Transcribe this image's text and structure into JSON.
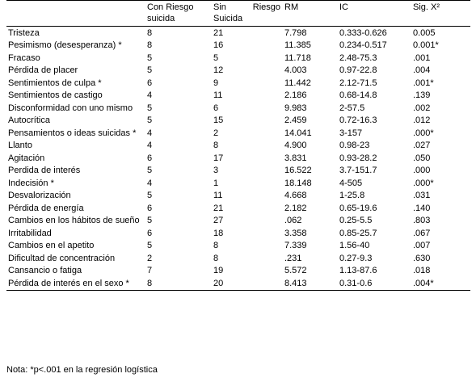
{
  "table": {
    "header": [
      "",
      "Con Riesgo suicida",
      "Sin Riesgo Suicida",
      "RM",
      "IC",
      "Sig. X²"
    ],
    "rows": [
      [
        "Tristeza",
        "8",
        "21",
        "7.798",
        "0.333-0.626",
        "0.005"
      ],
      [
        "Pesimismo (desesperanza) *",
        "8",
        "16",
        "11.385",
        "0.234-0.517",
        "0.001*"
      ],
      [
        "Fracaso",
        "5",
        "5",
        "11.718",
        "2.48-75.3",
        ".001"
      ],
      [
        "Pérdida de placer",
        "5",
        "12",
        "4.003",
        "0.97-22.8",
        ".004"
      ],
      [
        "Sentimientos de culpa *",
        "6",
        "9",
        "11.442",
        "2.12-71.5",
        ".001*"
      ],
      [
        "Sentimientos de castigo",
        "4",
        "11",
        "2.186",
        "0.68-14.8",
        ".139"
      ],
      [
        "Disconformidad con uno mismo",
        "5",
        "6",
        "9.983",
        "2-57.5",
        ".002"
      ],
      [
        "Autocrítica",
        "5",
        "15",
        "2.459",
        "0.72-16.3",
        ".012"
      ],
      [
        "Pensamientos o ideas suicidas *",
        "4",
        "2",
        "14.041",
        "3-157",
        ".000*"
      ],
      [
        "Llanto",
        "4",
        "8",
        "4.900",
        "0.98-23",
        ".027"
      ],
      [
        "Agitación",
        "6",
        "17",
        "3.831",
        "0.93-28.2",
        ".050"
      ],
      [
        "Perdida de interés",
        "5",
        "3",
        "16.522",
        "3.7-151.7",
        ".000"
      ],
      [
        "Indecisión *",
        "4",
        "1",
        "18.148",
        "4-505",
        ".000*"
      ],
      [
        "Desvalorización",
        "5",
        "11",
        "4.668",
        "1-25.8",
        ".031"
      ],
      [
        "Pérdida de energía",
        "6",
        "21",
        "2.182",
        "0.65-19.6",
        ".140"
      ],
      [
        "Cambios en los hábitos de sueño",
        "5",
        "27",
        ".062",
        "0.25-5.5",
        ".803"
      ],
      [
        "Irritabilidad",
        "6",
        "18",
        "3.358",
        "0.85-25.7",
        ".067"
      ],
      [
        "Cambios en el apetito",
        "5",
        "8",
        "7.339",
        "1.56-40",
        ".007"
      ],
      [
        "Dificultad de concentración",
        "2",
        "8",
        ".231",
        "0.27-9.3",
        ".630"
      ],
      [
        "Cansancio o fatiga",
        "7",
        "19",
        "5.572",
        "1.13-87.6",
        ".018"
      ],
      [
        "Pérdida de interés en el sexo *",
        "8",
        "20",
        "8.413",
        "0.31-0.6",
        ".004*"
      ]
    ]
  },
  "note": "Nota: *p<.001 en la regresión logística"
}
